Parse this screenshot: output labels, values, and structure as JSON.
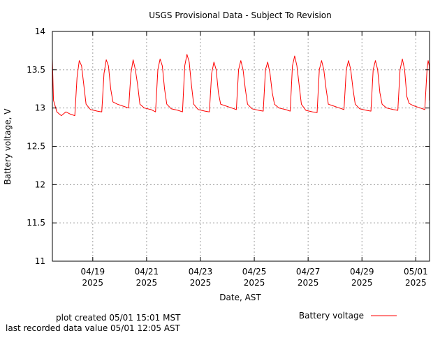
{
  "chart_data": {
    "type": "line",
    "title": "USGS Provisional Data - Subject To Revision",
    "xlabel": "Date, AST",
    "ylabel": "Battery voltage, V",
    "ylim": [
      11,
      14
    ],
    "y_ticks": [
      11,
      11.5,
      12,
      12.5,
      13,
      13.5,
      14
    ],
    "y_tick_labels": [
      "11",
      "11.5",
      "12",
      "12.5",
      "13",
      "13.5",
      "14"
    ],
    "xlim": [
      "2025-04-17T12:00",
      "2025-05-01T12:15"
    ],
    "x_ticks": [
      {
        "date": "04/19",
        "year": "2025"
      },
      {
        "date": "04/21",
        "year": "2025"
      },
      {
        "date": "04/23",
        "year": "2025"
      },
      {
        "date": "04/25",
        "year": "2025"
      },
      {
        "date": "04/27",
        "year": "2025"
      },
      {
        "date": "04/29",
        "year": "2025"
      },
      {
        "date": "05/01",
        "year": "2025"
      }
    ],
    "grid": true,
    "legend_position": "bottom-right",
    "series": [
      {
        "name": "Battery voltage",
        "color": "#ff0000",
        "points": [
          [
            "04/17 12:00",
            13.64
          ],
          [
            "04/17 13:00",
            13.1
          ],
          [
            "04/17 16:00",
            12.95
          ],
          [
            "04/17 20:00",
            12.9
          ],
          [
            "04/18 00:00",
            12.95
          ],
          [
            "04/18 04:00",
            12.92
          ],
          [
            "04/18 08:00",
            12.9
          ],
          [
            "04/18 10:00",
            13.4
          ],
          [
            "04/18 12:00",
            13.62
          ],
          [
            "04/18 14:00",
            13.55
          ],
          [
            "04/18 16:00",
            13.3
          ],
          [
            "04/18 18:00",
            13.05
          ],
          [
            "04/18 22:00",
            12.98
          ],
          [
            "04/19 04:00",
            12.96
          ],
          [
            "04/19 08:00",
            12.95
          ],
          [
            "04/19 10:00",
            13.45
          ],
          [
            "04/19 12:00",
            13.63
          ],
          [
            "04/19 14:00",
            13.55
          ],
          [
            "04/19 16:00",
            13.25
          ],
          [
            "04/19 18:00",
            13.08
          ],
          [
            "04/19 22:00",
            13.05
          ],
          [
            "04/20 04:00",
            13.02
          ],
          [
            "04/20 08:00",
            13.0
          ],
          [
            "04/20 10:00",
            13.45
          ],
          [
            "04/20 12:00",
            13.63
          ],
          [
            "04/20 14:00",
            13.5
          ],
          [
            "04/20 16:00",
            13.3
          ],
          [
            "04/20 18:00",
            13.05
          ],
          [
            "04/20 22:00",
            13.0
          ],
          [
            "04/21 04:00",
            12.98
          ],
          [
            "04/21 08:00",
            12.95
          ],
          [
            "04/21 10:00",
            13.5
          ],
          [
            "04/21 12:00",
            13.64
          ],
          [
            "04/21 14:00",
            13.55
          ],
          [
            "04/21 16:00",
            13.25
          ],
          [
            "04/21 18:00",
            13.05
          ],
          [
            "04/21 22:00",
            12.99
          ],
          [
            "04/22 04:00",
            12.97
          ],
          [
            "04/22 08:00",
            12.95
          ],
          [
            "04/22 10:00",
            13.55
          ],
          [
            "04/22 12:00",
            13.7
          ],
          [
            "04/22 14:00",
            13.6
          ],
          [
            "04/22 16:00",
            13.3
          ],
          [
            "04/22 18:00",
            13.05
          ],
          [
            "04/22 22:00",
            12.98
          ],
          [
            "04/23 04:00",
            12.96
          ],
          [
            "04/23 08:00",
            12.95
          ],
          [
            "04/23 10:00",
            13.45
          ],
          [
            "04/23 12:00",
            13.6
          ],
          [
            "04/23 14:00",
            13.5
          ],
          [
            "04/23 16:00",
            13.2
          ],
          [
            "04/23 18:00",
            13.05
          ],
          [
            "04/23 22:00",
            13.03
          ],
          [
            "04/24 04:00",
            13.0
          ],
          [
            "04/24 08:00",
            12.98
          ],
          [
            "04/24 10:00",
            13.5
          ],
          [
            "04/24 12:00",
            13.62
          ],
          [
            "04/24 14:00",
            13.5
          ],
          [
            "04/24 16:00",
            13.25
          ],
          [
            "04/24 18:00",
            13.05
          ],
          [
            "04/24 22:00",
            12.99
          ],
          [
            "04/25 04:00",
            12.97
          ],
          [
            "04/25 08:00",
            12.96
          ],
          [
            "04/25 10:00",
            13.5
          ],
          [
            "04/25 12:00",
            13.6
          ],
          [
            "04/25 14:00",
            13.45
          ],
          [
            "04/25 16:00",
            13.2
          ],
          [
            "04/25 18:00",
            13.05
          ],
          [
            "04/25 22:00",
            13.0
          ],
          [
            "04/26 04:00",
            12.98
          ],
          [
            "04/26 08:00",
            12.96
          ],
          [
            "04/26 10:00",
            13.55
          ],
          [
            "04/26 12:00",
            13.68
          ],
          [
            "04/26 14:00",
            13.55
          ],
          [
            "04/26 16:00",
            13.3
          ],
          [
            "04/26 18:00",
            13.05
          ],
          [
            "04/26 22:00",
            12.97
          ],
          [
            "04/27 04:00",
            12.95
          ],
          [
            "04/27 08:00",
            12.94
          ],
          [
            "04/27 10:00",
            13.5
          ],
          [
            "04/27 12:00",
            13.62
          ],
          [
            "04/27 14:00",
            13.5
          ],
          [
            "04/27 16:00",
            13.25
          ],
          [
            "04/27 18:00",
            13.05
          ],
          [
            "04/27 22:00",
            13.03
          ],
          [
            "04/28 04:00",
            13.0
          ],
          [
            "04/28 08:00",
            12.98
          ],
          [
            "04/28 10:00",
            13.5
          ],
          [
            "04/28 12:00",
            13.62
          ],
          [
            "04/28 14:00",
            13.5
          ],
          [
            "04/28 16:00",
            13.25
          ],
          [
            "04/28 18:00",
            13.05
          ],
          [
            "04/28 22:00",
            12.99
          ],
          [
            "04/29 04:00",
            12.97
          ],
          [
            "04/29 08:00",
            12.96
          ],
          [
            "04/29 10:00",
            13.5
          ],
          [
            "04/29 12:00",
            13.62
          ],
          [
            "04/29 14:00",
            13.5
          ],
          [
            "04/29 16:00",
            13.2
          ],
          [
            "04/29 18:00",
            13.05
          ],
          [
            "04/29 22:00",
            13.0
          ],
          [
            "04/30 04:00",
            12.98
          ],
          [
            "04/30 08:00",
            12.97
          ],
          [
            "04/30 10:00",
            13.5
          ],
          [
            "04/30 12:00",
            13.64
          ],
          [
            "04/30 14:00",
            13.5
          ],
          [
            "04/30 16:00",
            13.15
          ],
          [
            "04/30 18:00",
            13.06
          ],
          [
            "04/30 22:00",
            13.03
          ],
          [
            "05/01 04:00",
            13.0
          ],
          [
            "05/01 08:00",
            12.98
          ],
          [
            "05/01 10:00",
            13.5
          ],
          [
            "05/01 11:00",
            13.62
          ],
          [
            "05/01 12:00",
            13.55
          ],
          [
            "05/01 12:05",
            13.1
          ]
        ]
      }
    ]
  },
  "footer": {
    "plot_created": "plot created 05/01 15:01 MST",
    "last_recorded": "last recorded data value 05/01 12:05 AST"
  }
}
